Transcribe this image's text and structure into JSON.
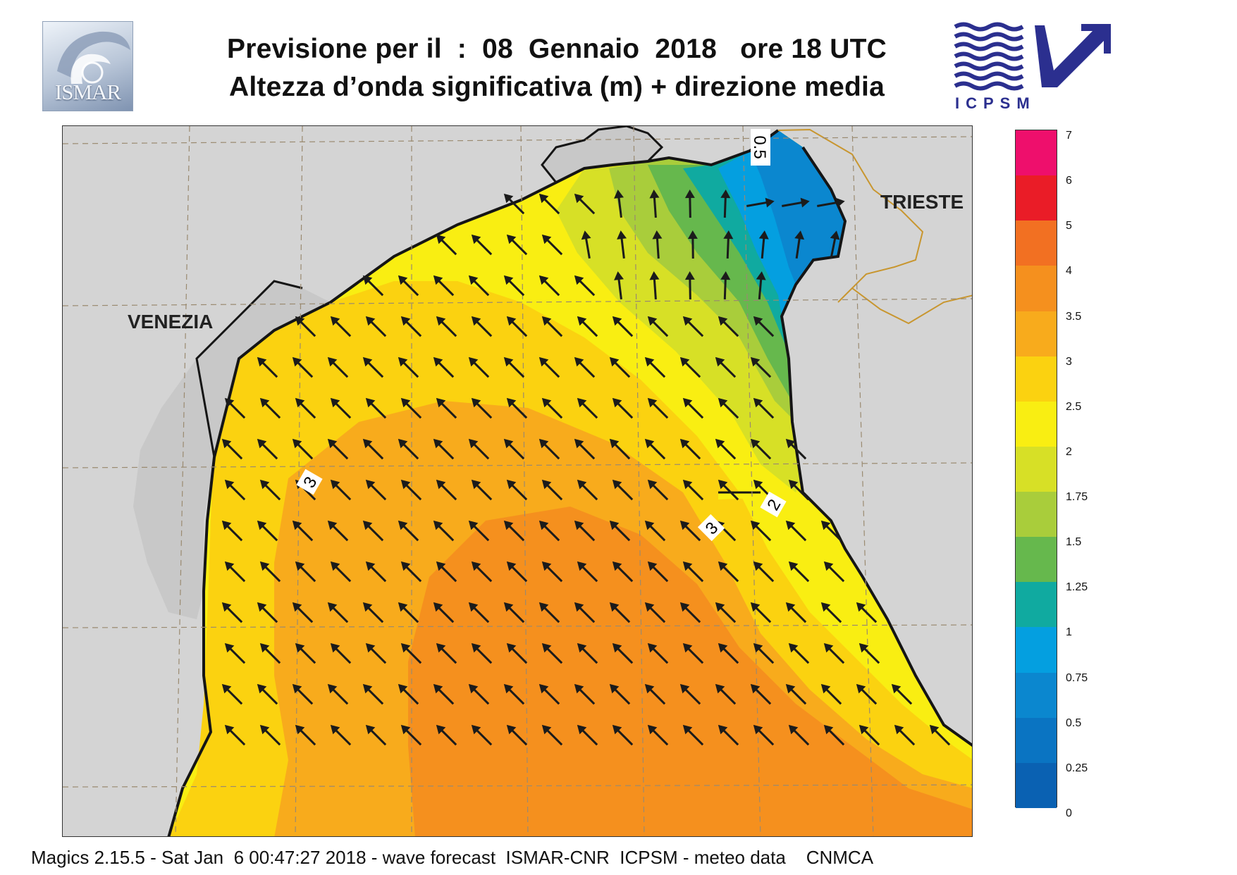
{
  "header": {
    "title_line1": "Previsione per il  :  08  Gennaio  2018   ore 18 UTC",
    "title_line2": "Altezza d’onda significativa (m) + direzione media",
    "logo_left": "ISMAR",
    "logo_right": "ICPSM"
  },
  "map": {
    "places": [
      {
        "id": "venezia",
        "label": "VENEZIA"
      },
      {
        "id": "trieste",
        "label": "TRIESTE"
      }
    ],
    "contour_labels": [
      "0.5",
      "3",
      "2",
      "3"
    ],
    "arrow_direction": "north-west",
    "colors": {
      "land": "#d4d4d4",
      "coast": "#151515",
      "grid": "#9a8a70",
      "border": "#c8962f",
      "arrow": "#1b1b1b"
    }
  },
  "legend": {
    "labels": [
      "7",
      "6",
      "5",
      "4",
      "3.5",
      "3",
      "2.5",
      "2",
      "1.75",
      "1.5",
      "1.25",
      "1",
      "0.75",
      "0.5",
      "0.25",
      "0"
    ],
    "colors": [
      "#ee0f6c",
      "#ea1c27",
      "#f27022",
      "#f5901e",
      "#f8ab1c",
      "#fbd210",
      "#f9ee12",
      "#d7e026",
      "#a9cd3b",
      "#66b84d",
      "#10aaa0",
      "#049fe0",
      "#0b87cf",
      "#0a74c2",
      "#0a61b2"
    ]
  },
  "footer": {
    "text": "Magics 2.15.5 - Sat Jan  6 00:47:27 2018 - wave forecast  ISMAR-CNR  ICPSM - meteo data    CNMCA"
  }
}
